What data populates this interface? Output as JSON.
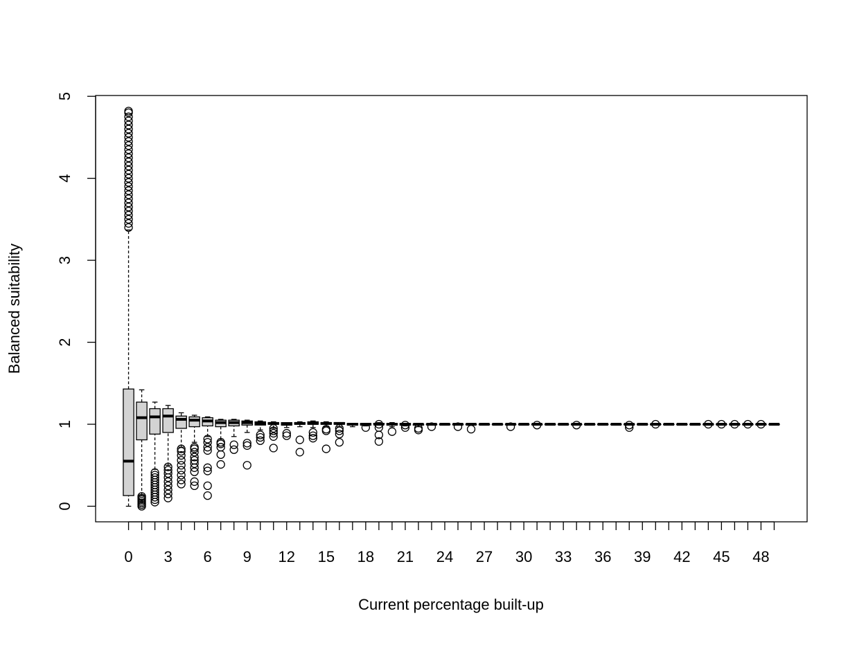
{
  "chart_data": {
    "type": "box",
    "xlabel": "Current percentage built-up",
    "ylabel": "Balanced suitability",
    "categories": [
      "0",
      null,
      null,
      "3",
      null,
      null,
      "6",
      null,
      null,
      "9",
      null,
      null,
      "12",
      null,
      null,
      "15",
      null,
      null,
      "18",
      null,
      null,
      "21",
      null,
      null,
      "24",
      null,
      null,
      "27",
      null,
      null,
      "30",
      null,
      null,
      "33",
      null,
      null,
      "36",
      null,
      null,
      "39",
      null,
      null,
      "42",
      null,
      null,
      "45",
      null,
      null,
      "48",
      null
    ],
    "min": [
      0,
      0.13,
      0.45,
      0.5,
      0.72,
      0.78,
      0.85,
      0.82,
      0.85,
      0.9,
      0.93,
      0.95,
      0.96,
      0.97,
      0.96,
      0.97,
      0.97,
      0.97,
      0.98,
      0.99,
      0.97,
      0.98,
      0.97,
      0.99,
      0.99,
      0.99,
      0.99,
      0.99,
      0.99,
      0.99,
      0.99,
      0.99,
      0.99,
      0.99,
      0.99,
      0.99,
      0.99,
      0.99,
      0.99,
      0.99,
      0.99,
      0.99,
      0.99,
      0.99,
      0.99,
      0.99,
      0.99,
      0.99,
      0.99,
      0.99
    ],
    "q1": [
      0.13,
      0.81,
      0.88,
      0.9,
      0.95,
      0.97,
      0.98,
      0.97,
      0.98,
      0.99,
      0.99,
      1.0,
      0.99,
      1.0,
      1.0,
      1.0,
      1.0,
      0.99,
      0.99,
      1.0,
      0.99,
      0.99,
      0.99,
      1.0,
      1.0,
      1.0,
      1.0,
      1.0,
      1.0,
      1.0,
      1.0,
      1.0,
      1.0,
      1.0,
      1.0,
      1.0,
      1.0,
      1.0,
      1.0,
      1.0,
      1.0,
      1.0,
      1.0,
      1.0,
      1.0,
      1.0,
      1.0,
      1.0,
      1.0,
      1.0
    ],
    "median": [
      0.55,
      1.08,
      1.09,
      1.1,
      1.06,
      1.05,
      1.04,
      1.02,
      1.02,
      1.02,
      1.01,
      1.01,
      1.0,
      1.01,
      1.01,
      1.01,
      1.01,
      1.0,
      1.0,
      1.0,
      1.0,
      1.0,
      1.0,
      1.0,
      1.0,
      1.0,
      1.0,
      1.0,
      1.0,
      1.0,
      1.0,
      1.0,
      1.0,
      1.0,
      1.0,
      1.0,
      1.0,
      1.0,
      1.0,
      1.0,
      1.0,
      1.0,
      1.0,
      1.0,
      1.0,
      1.0,
      1.0,
      1.0,
      1.0,
      1.0
    ],
    "q3": [
      1.43,
      1.27,
      1.19,
      1.19,
      1.1,
      1.09,
      1.08,
      1.05,
      1.05,
      1.04,
      1.03,
      1.02,
      1.02,
      1.02,
      1.03,
      1.02,
      1.02,
      1.01,
      1.01,
      1.01,
      1.01,
      1.01,
      1.0,
      1.0,
      1.0,
      1.0,
      1.0,
      1.0,
      1.0,
      1.0,
      1.0,
      1.0,
      1.0,
      1.0,
      1.0,
      1.0,
      1.0,
      1.0,
      1.0,
      1.0,
      1.0,
      1.0,
      1.0,
      1.0,
      1.0,
      1.0,
      1.0,
      1.0,
      1.0,
      1.0
    ],
    "max": [
      3.37,
      1.42,
      1.27,
      1.23,
      1.14,
      1.11,
      1.09,
      1.06,
      1.06,
      1.05,
      1.04,
      1.03,
      1.02,
      1.03,
      1.04,
      1.03,
      1.02,
      1.01,
      1.01,
      1.02,
      1.02,
      1.01,
      1.01,
      1.0,
      1.01,
      1.01,
      1.01,
      1.01,
      1.01,
      1.01,
      1.01,
      1.01,
      1.01,
      1.01,
      1.01,
      1.01,
      1.01,
      1.01,
      1.01,
      1.01,
      1.01,
      1.01,
      1.01,
      1.01,
      1.01,
      1.01,
      1.01,
      1.01,
      1.01,
      1.01
    ],
    "outliers": [
      [
        3.4,
        3.45,
        3.5,
        3.55,
        3.6,
        3.65,
        3.7,
        3.75,
        3.8,
        3.85,
        3.9,
        3.95,
        4.0,
        4.05,
        4.1,
        4.15,
        4.2,
        4.25,
        4.3,
        4.35,
        4.4,
        4.45,
        4.5,
        4.55,
        4.6,
        4.65,
        4.7,
        4.75,
        4.8,
        4.82
      ],
      [
        0,
        0.02,
        0.04,
        0.06,
        0.08,
        0.1,
        0.12
      ],
      [
        0.05,
        0.08,
        0.11,
        0.14,
        0.17,
        0.2,
        0.23,
        0.26,
        0.29,
        0.32,
        0.35,
        0.38,
        0.41
      ],
      [
        0.1,
        0.15,
        0.2,
        0.25,
        0.3,
        0.35,
        0.4,
        0.44,
        0.48
      ],
      [
        0.27,
        0.32,
        0.38,
        0.44,
        0.5,
        0.56,
        0.62,
        0.67,
        0.7
      ],
      [
        0.25,
        0.3,
        0.42,
        0.47,
        0.52,
        0.56,
        0.6,
        0.66,
        0.7,
        0.72
      ],
      [
        0.13,
        0.25,
        0.43,
        0.47,
        0.68,
        0.72,
        0.78,
        0.82
      ],
      [
        0.51,
        0.63,
        0.72,
        0.76,
        0.78
      ],
      [
        0.69,
        0.75
      ],
      [
        0.5,
        0.74,
        0.77
      ],
      [
        0.8,
        0.84,
        0.87
      ],
      [
        0.71,
        0.85,
        0.89,
        0.92,
        0.95
      ],
      [
        0.86,
        0.89
      ],
      [
        0.66,
        0.81
      ],
      [
        0.83,
        0.86,
        0.9
      ],
      [
        0.7,
        0.92,
        0.94
      ],
      [
        0.78,
        0.88,
        0.92,
        0.95
      ],
      [],
      [
        0.96
      ],
      [
        0.79,
        0.87,
        0.96,
        1.0
      ],
      [
        0.91
      ],
      [
        0.96,
        0.99
      ],
      [
        0.93,
        0.95
      ],
      [
        0.97
      ],
      [],
      [
        0.97
      ],
      [
        0.94
      ],
      [],
      [],
      [
        0.97
      ],
      [],
      [
        0.99
      ],
      [],
      [],
      [
        0.99
      ],
      [],
      [],
      [],
      [
        0.96,
        0.99
      ],
      [],
      [
        1.0
      ],
      [],
      [],
      [],
      [
        1.0
      ],
      [
        1.0
      ],
      [
        1.0
      ],
      [
        1.0
      ],
      [
        1.0
      ],
      []
    ],
    "box_color": "#d3d3d3",
    "ylim": [
      -0.19,
      5.01
    ],
    "yticks": [
      0,
      1,
      2,
      3,
      4,
      5
    ]
  }
}
